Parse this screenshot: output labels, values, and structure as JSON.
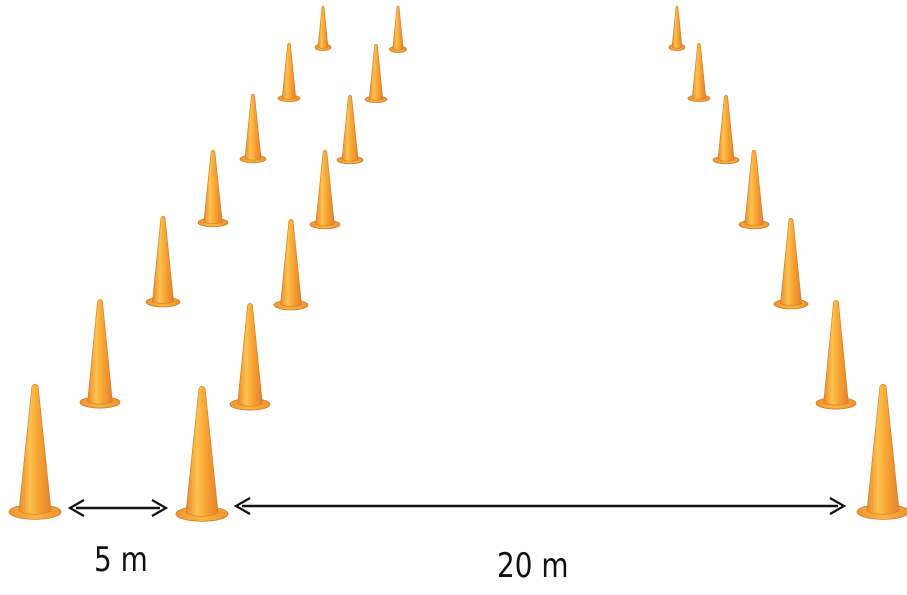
{
  "diagram": {
    "cone_colors": {
      "light": "#fcc34f",
      "mid": "#f9a433",
      "dark": "#e9862a",
      "base": "#f6a02f",
      "outline": "#ce7926"
    },
    "arrow_color": "#111111",
    "dimensions": [
      {
        "id": "gap-5m",
        "label": "5 m"
      },
      {
        "id": "gap-20m",
        "label": "20 m"
      }
    ]
  }
}
